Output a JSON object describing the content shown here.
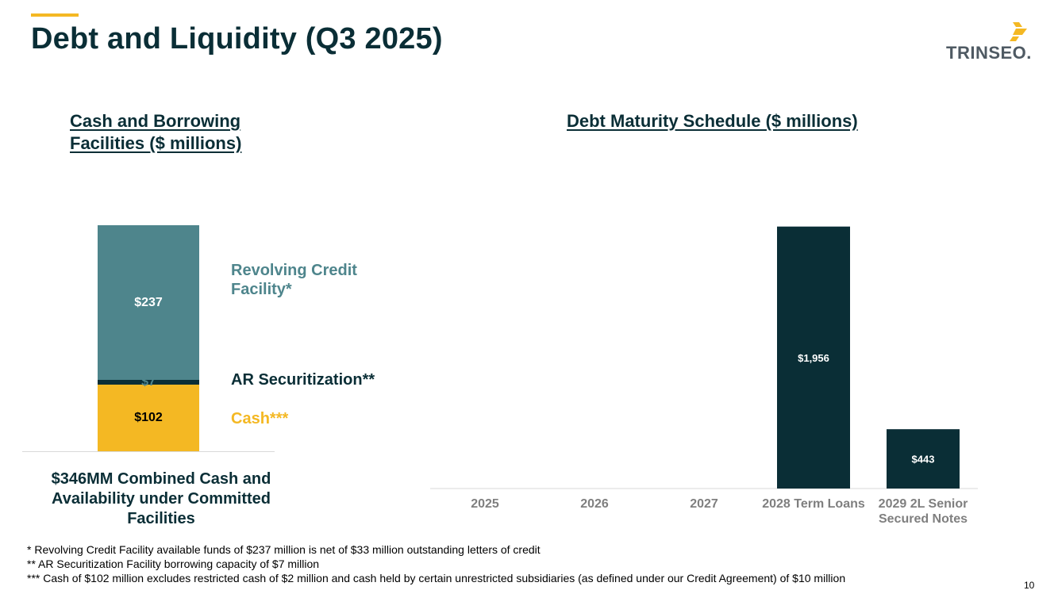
{
  "header": {
    "title": "Debt and Liquidity (Q3 2025)",
    "logo_text": "TRINSEO."
  },
  "colors": {
    "brand_dark": "#0a2e36",
    "accent_yellow": "#f4b823",
    "teal": "#4e858c",
    "axis_gray": "#7f7f7f"
  },
  "left_section": {
    "title": "Cash and Borrowing Facilities ($ millions)",
    "combined_text": "$346MM Combined Cash and Availability under Committed Facilities"
  },
  "right_section": {
    "title": "Debt Maturity Schedule ($ millions)"
  },
  "chart_data": [
    {
      "type": "bar",
      "stacked": true,
      "title": "Cash and Borrowing Facilities ($ millions)",
      "series": [
        {
          "name": "Cash***",
          "value": 102,
          "label": "$102",
          "color": "#f4b823"
        },
        {
          "name": "AR Securitization**",
          "value": 7,
          "label": "$7",
          "color": "#0a2e36"
        },
        {
          "name": "Revolving Credit Facility*",
          "value": 237,
          "label": "$237",
          "color": "#4e858c"
        }
      ],
      "total": 346
    },
    {
      "type": "bar",
      "title": "Debt Maturity Schedule ($ millions)",
      "categories": [
        "2025",
        "2026",
        "2027",
        "2028 Term Loans",
        "2029 2L Senior Secured Notes"
      ],
      "values": [
        0,
        0,
        0,
        1956,
        443
      ],
      "labels": [
        "",
        "",
        "",
        "$1,956",
        "$443"
      ],
      "color": "#0a2e36",
      "ylim": [
        0,
        1960
      ]
    }
  ],
  "footnotes": [
    "* Revolving Credit Facility available funds of $237 million is net of $33 million outstanding letters of credit",
    "** AR Securitization Facility borrowing capacity of $7 million",
    "*** Cash of $102 million excludes restricted cash of $2 million and cash held by certain unrestricted subsidiaries (as defined under our Credit Agreement) of $10 million"
  ],
  "page_number": "10"
}
